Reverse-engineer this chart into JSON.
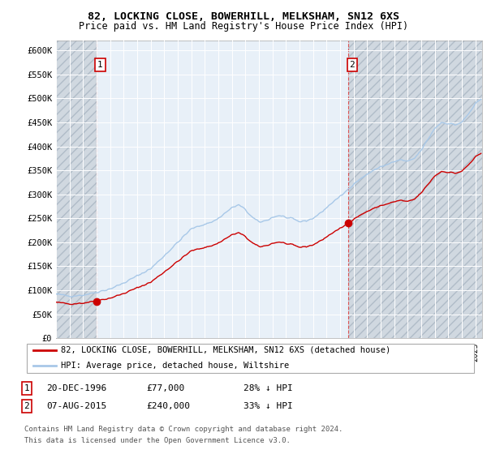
{
  "title_line1": "82, LOCKING CLOSE, BOWERHILL, MELKSHAM, SN12 6XS",
  "title_line2": "Price paid vs. HM Land Registry's House Price Index (HPI)",
  "ylim": [
    0,
    620000
  ],
  "yticks": [
    0,
    50000,
    100000,
    150000,
    200000,
    250000,
    300000,
    350000,
    400000,
    450000,
    500000,
    550000,
    600000
  ],
  "ytick_labels": [
    "£0",
    "£50K",
    "£100K",
    "£150K",
    "£200K",
    "£250K",
    "£300K",
    "£350K",
    "£400K",
    "£450K",
    "£500K",
    "£550K",
    "£600K"
  ],
  "xlim_start": 1994.0,
  "xlim_end": 2025.5,
  "sale1_date": 1996.97,
  "sale1_price": 77000,
  "sale1_label": "1",
  "sale2_date": 2015.58,
  "sale2_price": 240000,
  "sale2_label": "2",
  "legend_label1": "82, LOCKING CLOSE, BOWERHILL, MELKSHAM, SN12 6XS (detached house)",
  "legend_label2": "HPI: Average price, detached house, Wiltshire",
  "info1_num": "1",
  "info1_date": "20-DEC-1996",
  "info1_price": "£77,000",
  "info1_hpi": "28% ↓ HPI",
  "info2_num": "2",
  "info2_date": "07-AUG-2015",
  "info2_price": "£240,000",
  "info2_hpi": "33% ↓ HPI",
  "footer_line1": "Contains HM Land Registry data © Crown copyright and database right 2024.",
  "footer_line2": "This data is licensed under the Open Government Licence v3.0.",
  "hpi_color": "#a8c8e8",
  "price_color": "#cc0000",
  "vline_color": "#dd4444",
  "plot_bg_color": "#e8f0f8",
  "background_color": "#ffffff",
  "grid_color": "#ffffff",
  "hatch_bg_color": "#d0d8e0"
}
